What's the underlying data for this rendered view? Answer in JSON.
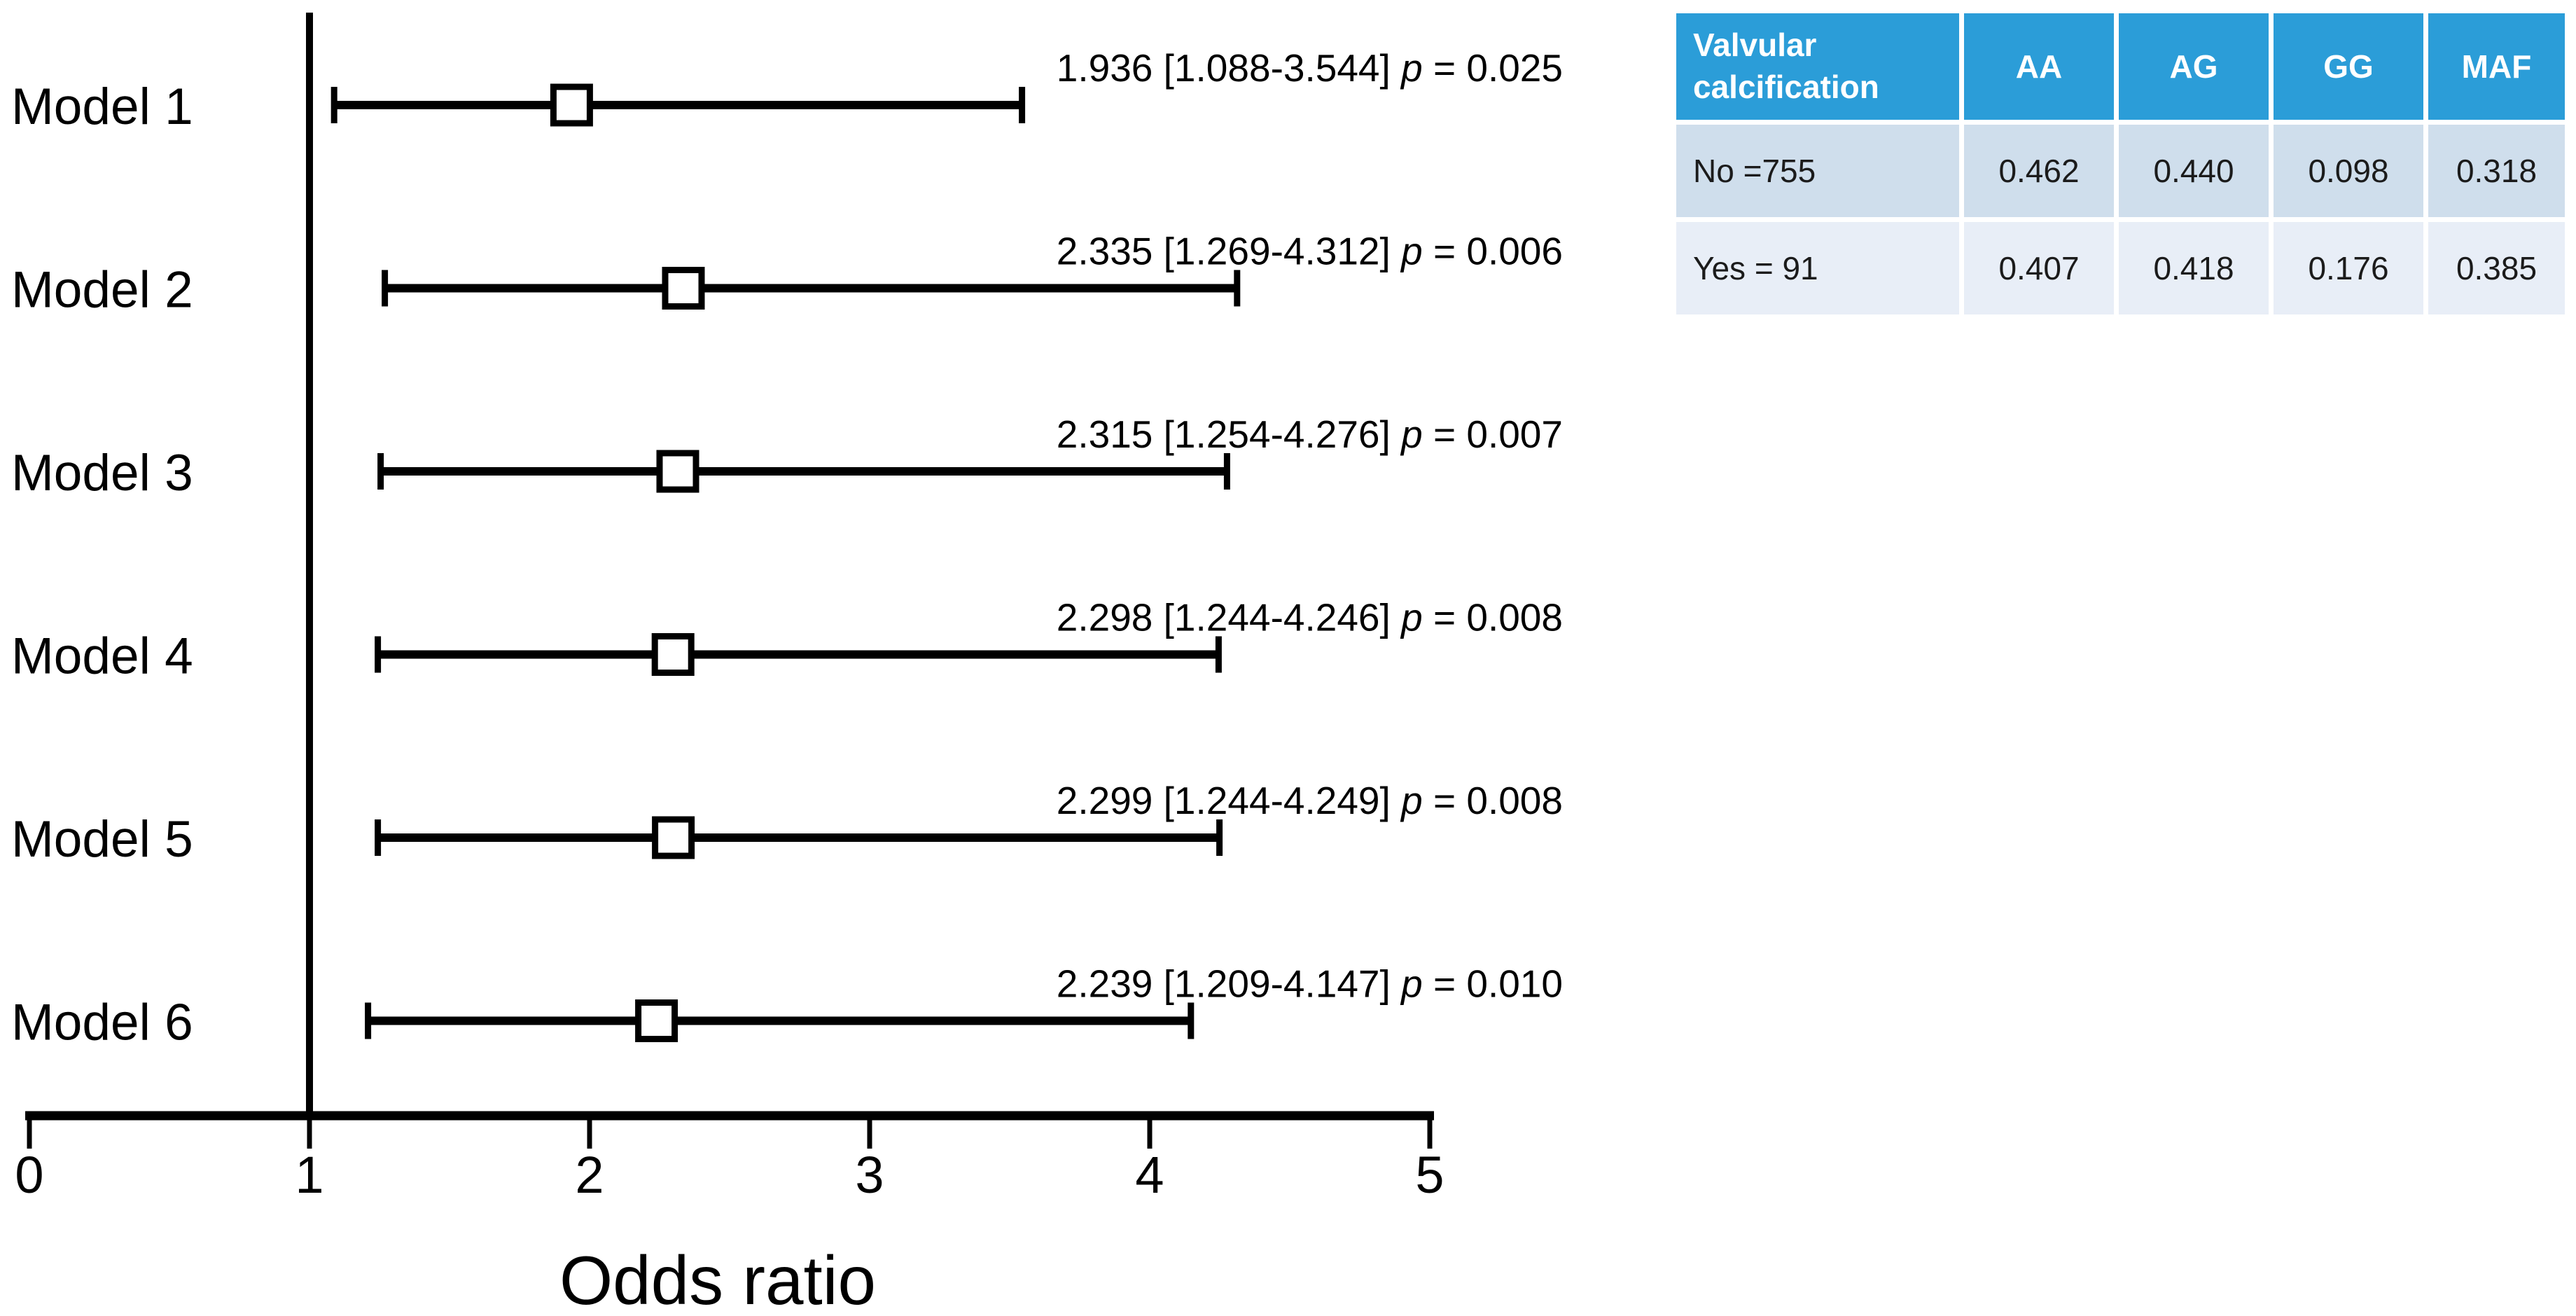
{
  "chart_data": {
    "type": "forest",
    "title": "",
    "xlabel": "Odds ratio",
    "ylabel": "",
    "xlim": [
      0,
      5
    ],
    "x_ticks": [
      "0",
      "1",
      "2",
      "3",
      "4",
      "5"
    ],
    "reference_line_x": 1,
    "marker": "open-square",
    "grid": false,
    "p_symbol": "p",
    "models": [
      {
        "label": "Model 1",
        "or": 1.936,
        "ci_low": 1.088,
        "ci_high": 3.544,
        "p": 0.025,
        "annotation_pre": "1.936 [1.088-3.544] ",
        "annotation_post": " = 0.025"
      },
      {
        "label": "Model 2",
        "or": 2.335,
        "ci_low": 1.269,
        "ci_high": 4.312,
        "p": 0.006,
        "annotation_pre": "2.335 [1.269-4.312] ",
        "annotation_post": " = 0.006"
      },
      {
        "label": "Model 3",
        "or": 2.315,
        "ci_low": 1.254,
        "ci_high": 4.276,
        "p": 0.007,
        "annotation_pre": "2.315 [1.254-4.276] ",
        "annotation_post": " = 0.007"
      },
      {
        "label": "Model 4",
        "or": 2.298,
        "ci_low": 1.244,
        "ci_high": 4.246,
        "p": 0.008,
        "annotation_pre": "2.298 [1.244-4.246] ",
        "annotation_post": " = 0.008"
      },
      {
        "label": "Model 5",
        "or": 2.299,
        "ci_low": 1.244,
        "ci_high": 4.249,
        "p": 0.008,
        "annotation_pre": "2.299 [1.244-4.249] ",
        "annotation_post": " = 0.008"
      },
      {
        "label": "Model 6",
        "or": 2.239,
        "ci_low": 1.209,
        "ci_high": 4.147,
        "p": 0.01,
        "annotation_pre": "2.239 [1.209-4.147] ",
        "annotation_post": " = 0.010"
      }
    ]
  },
  "genotype_table": {
    "header": [
      "Valvular calcification",
      "AA",
      "AG",
      "GG",
      "MAF"
    ],
    "rows": [
      [
        "No =755",
        "0.462",
        "0.440",
        "0.098",
        "0.318"
      ],
      [
        "Yes = 91",
        "0.407",
        "0.418",
        "0.176",
        "0.385"
      ]
    ],
    "colors": {
      "header_bg": "#2b9dd8",
      "header_text": "#ffffff",
      "row1_bg": "#cfdeec",
      "row2_bg": "#e8eef7",
      "cell_text": "#1b1b1b",
      "plot_ink": "#000000"
    }
  }
}
